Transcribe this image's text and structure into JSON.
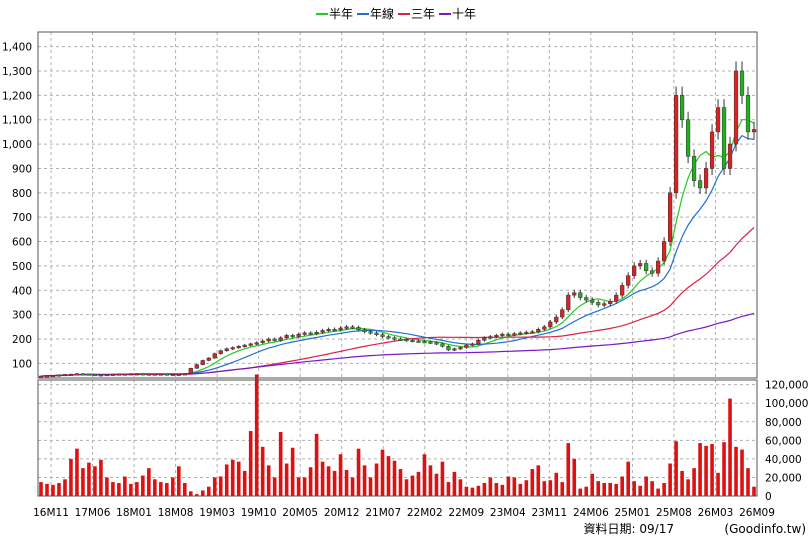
{
  "chart_data": {
    "type": "candlestick",
    "legend": [
      {
        "label": "半年",
        "color": "#22cc22"
      },
      {
        "label": "年線",
        "color": "#1f6fd6"
      },
      {
        "label": "三年",
        "color": "#e0204a"
      },
      {
        "label": "十年",
        "color": "#7a18c8"
      }
    ],
    "colors": {
      "up": "#e02020",
      "down": "#20b020",
      "volume": "#dd1111",
      "grid": "#b0b0b0"
    },
    "price_axis": {
      "ylim": [
        40,
        1460
      ],
      "ticks": [
        100,
        200,
        300,
        400,
        500,
        600,
        700,
        800,
        900,
        1000,
        1100,
        1200,
        1300,
        1400
      ],
      "tick_labels": [
        "100",
        "200",
        "300",
        "400",
        "500",
        "600",
        "700",
        "800",
        "900",
        "1,000",
        "1,100",
        "1,200",
        "1,300",
        "1,400"
      ],
      "grid": true
    },
    "volume_axis": {
      "ylim": [
        0,
        125000
      ],
      "ticks": [
        0,
        20000,
        40000,
        60000,
        80000,
        100000,
        120000
      ],
      "tick_labels": [
        "0",
        "20,000",
        "40,000",
        "60,000",
        "80,000",
        "100,000",
        "120,000"
      ]
    },
    "x_labels": [
      "16M11",
      "17M06",
      "18M01",
      "18M08",
      "19M03",
      "19M10",
      "20M05",
      "20M12",
      "21M07",
      "22M02",
      "22M09",
      "23M04",
      "23M11",
      "24M06",
      "25M01",
      "25M08",
      "26M03",
      "26M09"
    ],
    "periods": 120,
    "close": [
      48,
      50,
      51,
      53,
      55,
      56,
      58,
      57,
      55,
      54,
      54,
      55,
      56,
      57,
      57,
      58,
      58,
      57,
      57,
      57,
      57,
      56,
      56,
      56,
      58,
      80,
      95,
      112,
      122,
      140,
      152,
      160,
      165,
      170,
      175,
      180,
      185,
      192,
      200,
      195,
      205,
      215,
      210,
      220,
      225,
      222,
      228,
      235,
      240,
      238,
      245,
      250,
      248,
      238,
      230,
      225,
      218,
      210,
      205,
      200,
      198,
      195,
      192,
      190,
      188,
      185,
      180,
      170,
      155,
      160,
      165,
      175,
      180,
      195,
      205,
      210,
      215,
      220,
      218,
      222,
      225,
      228,
      230,
      240,
      250,
      270,
      290,
      320,
      380,
      390,
      370,
      360,
      350,
      340,
      345,
      355,
      380,
      420,
      460,
      500,
      510,
      480,
      470,
      520,
      600,
      800,
      1200,
      1100,
      950,
      850,
      820,
      900,
      1050,
      1150,
      900,
      1000,
      1300,
      1200,
      1050,
      1060
    ],
    "volume": [
      15000,
      13000,
      12000,
      14000,
      18000,
      40000,
      51000,
      30000,
      36000,
      32000,
      39000,
      20000,
      15000,
      14000,
      21000,
      13000,
      15000,
      22000,
      30000,
      18000,
      15000,
      14000,
      20000,
      32000,
      14000,
      5000,
      2000,
      6000,
      10000,
      20000,
      21000,
      34000,
      39000,
      37000,
      27000,
      70000,
      131000,
      53000,
      33000,
      20000,
      69000,
      35000,
      52000,
      20000,
      20000,
      31000,
      67000,
      37000,
      32000,
      27000,
      45000,
      28000,
      20000,
      51000,
      33000,
      20000,
      35000,
      50000,
      43000,
      38000,
      29000,
      18000,
      22000,
      26000,
      45000,
      33000,
      24000,
      37000,
      15000,
      26000,
      18000,
      10000,
      9000,
      11000,
      14000,
      20000,
      14000,
      12000,
      21000,
      20000,
      13000,
      17000,
      29000,
      33000,
      16000,
      17000,
      25000,
      15000,
      57000,
      40000,
      8000,
      10000,
      24000,
      16000,
      14000,
      14000,
      13000,
      21000,
      37000,
      16000,
      11000,
      21000,
      16000,
      8000,
      14000,
      35000,
      59000,
      27000,
      18000,
      30000,
      57000,
      54000,
      56000,
      25000,
      58000,
      105000,
      53000,
      50000,
      30000,
      10000
    ]
  },
  "footer": {
    "date_label": "資料日期: 09/17",
    "source": "(Goodinfo.tw)"
  }
}
